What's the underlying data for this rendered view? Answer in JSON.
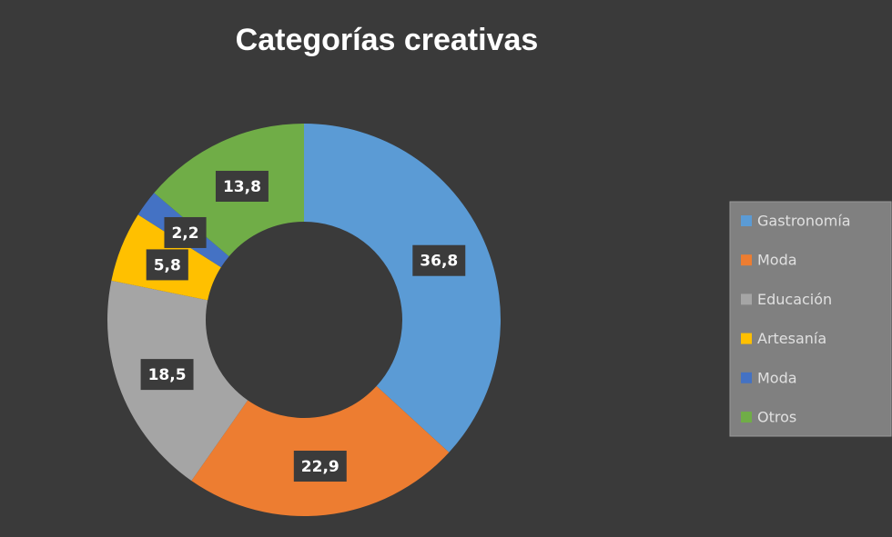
{
  "chart_data": {
    "type": "donut",
    "title": "Categorías creativas",
    "categories": [
      "Gastronomía",
      "Moda",
      "Educación",
      "Artesanía",
      "Moda",
      "Otros"
    ],
    "values": [
      36.8,
      22.9,
      18.5,
      5.8,
      2.2,
      13.8
    ],
    "value_labels": [
      "36,8",
      "22,9",
      "18,5",
      "5,8",
      "2,2",
      "13,8"
    ],
    "colors": [
      "#5b9bd5",
      "#ed7d31",
      "#a5a5a5",
      "#ffc000",
      "#4472c4",
      "#70ad47"
    ],
    "legend": "right"
  }
}
